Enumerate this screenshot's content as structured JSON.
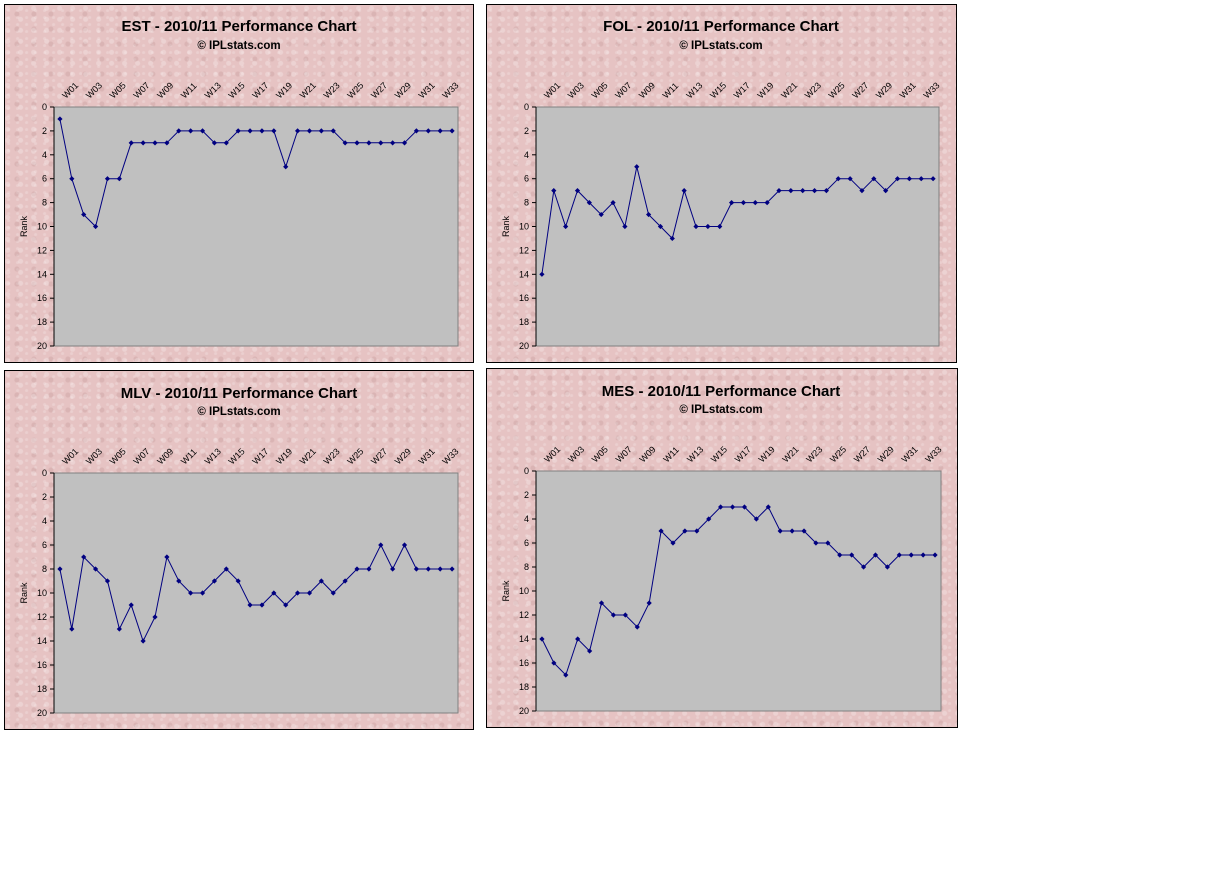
{
  "chart_data": [
    {
      "type": "line",
      "title": "EST - 2010/11 Performance Chart",
      "subtitle": "© IPLstats.com",
      "xlabel": "",
      "ylabel": "Rank",
      "ylim": [
        0,
        20
      ],
      "y_reversed": true,
      "yticks": [
        0,
        2,
        4,
        6,
        8,
        10,
        12,
        14,
        16,
        18,
        20
      ],
      "xtick_labels": [
        "W01",
        "W03",
        "W05",
        "W07",
        "W09",
        "W11",
        "W13",
        "W15",
        "W17",
        "W19",
        "W21",
        "W23",
        "W25",
        "W27",
        "W29",
        "W31",
        "W33"
      ],
      "series": [
        {
          "values": [
            1,
            6,
            9,
            10,
            6,
            6,
            3,
            3,
            3,
            3,
            2,
            2,
            2,
            3,
            3,
            2,
            2,
            2,
            2,
            5,
            2,
            2,
            2,
            2,
            3,
            3,
            3,
            3,
            3,
            3,
            2,
            2,
            2,
            2
          ],
          "color": "#000080"
        }
      ],
      "plot_background": "#c0c0c0",
      "grid": false
    },
    {
      "type": "line",
      "title": "FOL - 2010/11 Performance Chart",
      "subtitle": "© IPLstats.com",
      "xlabel": "",
      "ylabel": "Rank",
      "ylim": [
        0,
        20
      ],
      "y_reversed": true,
      "yticks": [
        0,
        2,
        4,
        6,
        8,
        10,
        12,
        14,
        16,
        18,
        20
      ],
      "xtick_labels": [
        "W01",
        "W03",
        "W05",
        "W07",
        "W09",
        "W11",
        "W13",
        "W15",
        "W17",
        "W19",
        "W21",
        "W23",
        "W25",
        "W27",
        "W29",
        "W31",
        "W33"
      ],
      "series": [
        {
          "values": [
            14,
            7,
            10,
            7,
            8,
            9,
            8,
            10,
            5,
            9,
            10,
            11,
            7,
            10,
            10,
            10,
            8,
            8,
            8,
            8,
            7,
            7,
            7,
            7,
            7,
            6,
            6,
            7,
            6,
            7,
            6,
            6,
            6,
            6
          ],
          "color": "#000080"
        }
      ],
      "plot_background": "#c0c0c0",
      "grid": false
    },
    {
      "type": "line",
      "title": "MLV - 2010/11 Performance Chart",
      "subtitle": "© IPLstats.com",
      "xlabel": "",
      "ylabel": "Rank",
      "ylim": [
        0,
        20
      ],
      "y_reversed": true,
      "yticks": [
        0,
        2,
        4,
        6,
        8,
        10,
        12,
        14,
        16,
        18,
        20
      ],
      "xtick_labels": [
        "W01",
        "W03",
        "W05",
        "W07",
        "W09",
        "W11",
        "W13",
        "W15",
        "W17",
        "W19",
        "W21",
        "W23",
        "W25",
        "W27",
        "W29",
        "W31",
        "W33"
      ],
      "series": [
        {
          "values": [
            8,
            13,
            7,
            8,
            9,
            13,
            11,
            14,
            12,
            7,
            9,
            10,
            10,
            9,
            8,
            9,
            11,
            11,
            10,
            11,
            10,
            10,
            9,
            10,
            9,
            8,
            8,
            6,
            8,
            6,
            8,
            8,
            8,
            8
          ],
          "color": "#000080"
        }
      ],
      "plot_background": "#c0c0c0",
      "grid": false
    },
    {
      "type": "line",
      "title": "MES - 2010/11 Performance Chart",
      "subtitle": "© IPLstats.com",
      "xlabel": "",
      "ylabel": "Rank",
      "ylim": [
        0,
        20
      ],
      "y_reversed": true,
      "yticks": [
        0,
        2,
        4,
        6,
        8,
        10,
        12,
        14,
        16,
        18,
        20
      ],
      "xtick_labels": [
        "W01",
        "W03",
        "W05",
        "W07",
        "W09",
        "W11",
        "W13",
        "W15",
        "W17",
        "W19",
        "W21",
        "W23",
        "W25",
        "W27",
        "W29",
        "W31",
        "W33"
      ],
      "series": [
        {
          "values": [
            14,
            16,
            17,
            14,
            15,
            11,
            12,
            12,
            13,
            11,
            5,
            6,
            5,
            5,
            4,
            3,
            3,
            3,
            4,
            3,
            5,
            5,
            5,
            6,
            6,
            7,
            7,
            8,
            7,
            8,
            7,
            7,
            7,
            7
          ],
          "color": "#000080"
        }
      ],
      "plot_background": "#c0c0c0",
      "grid": false
    }
  ]
}
